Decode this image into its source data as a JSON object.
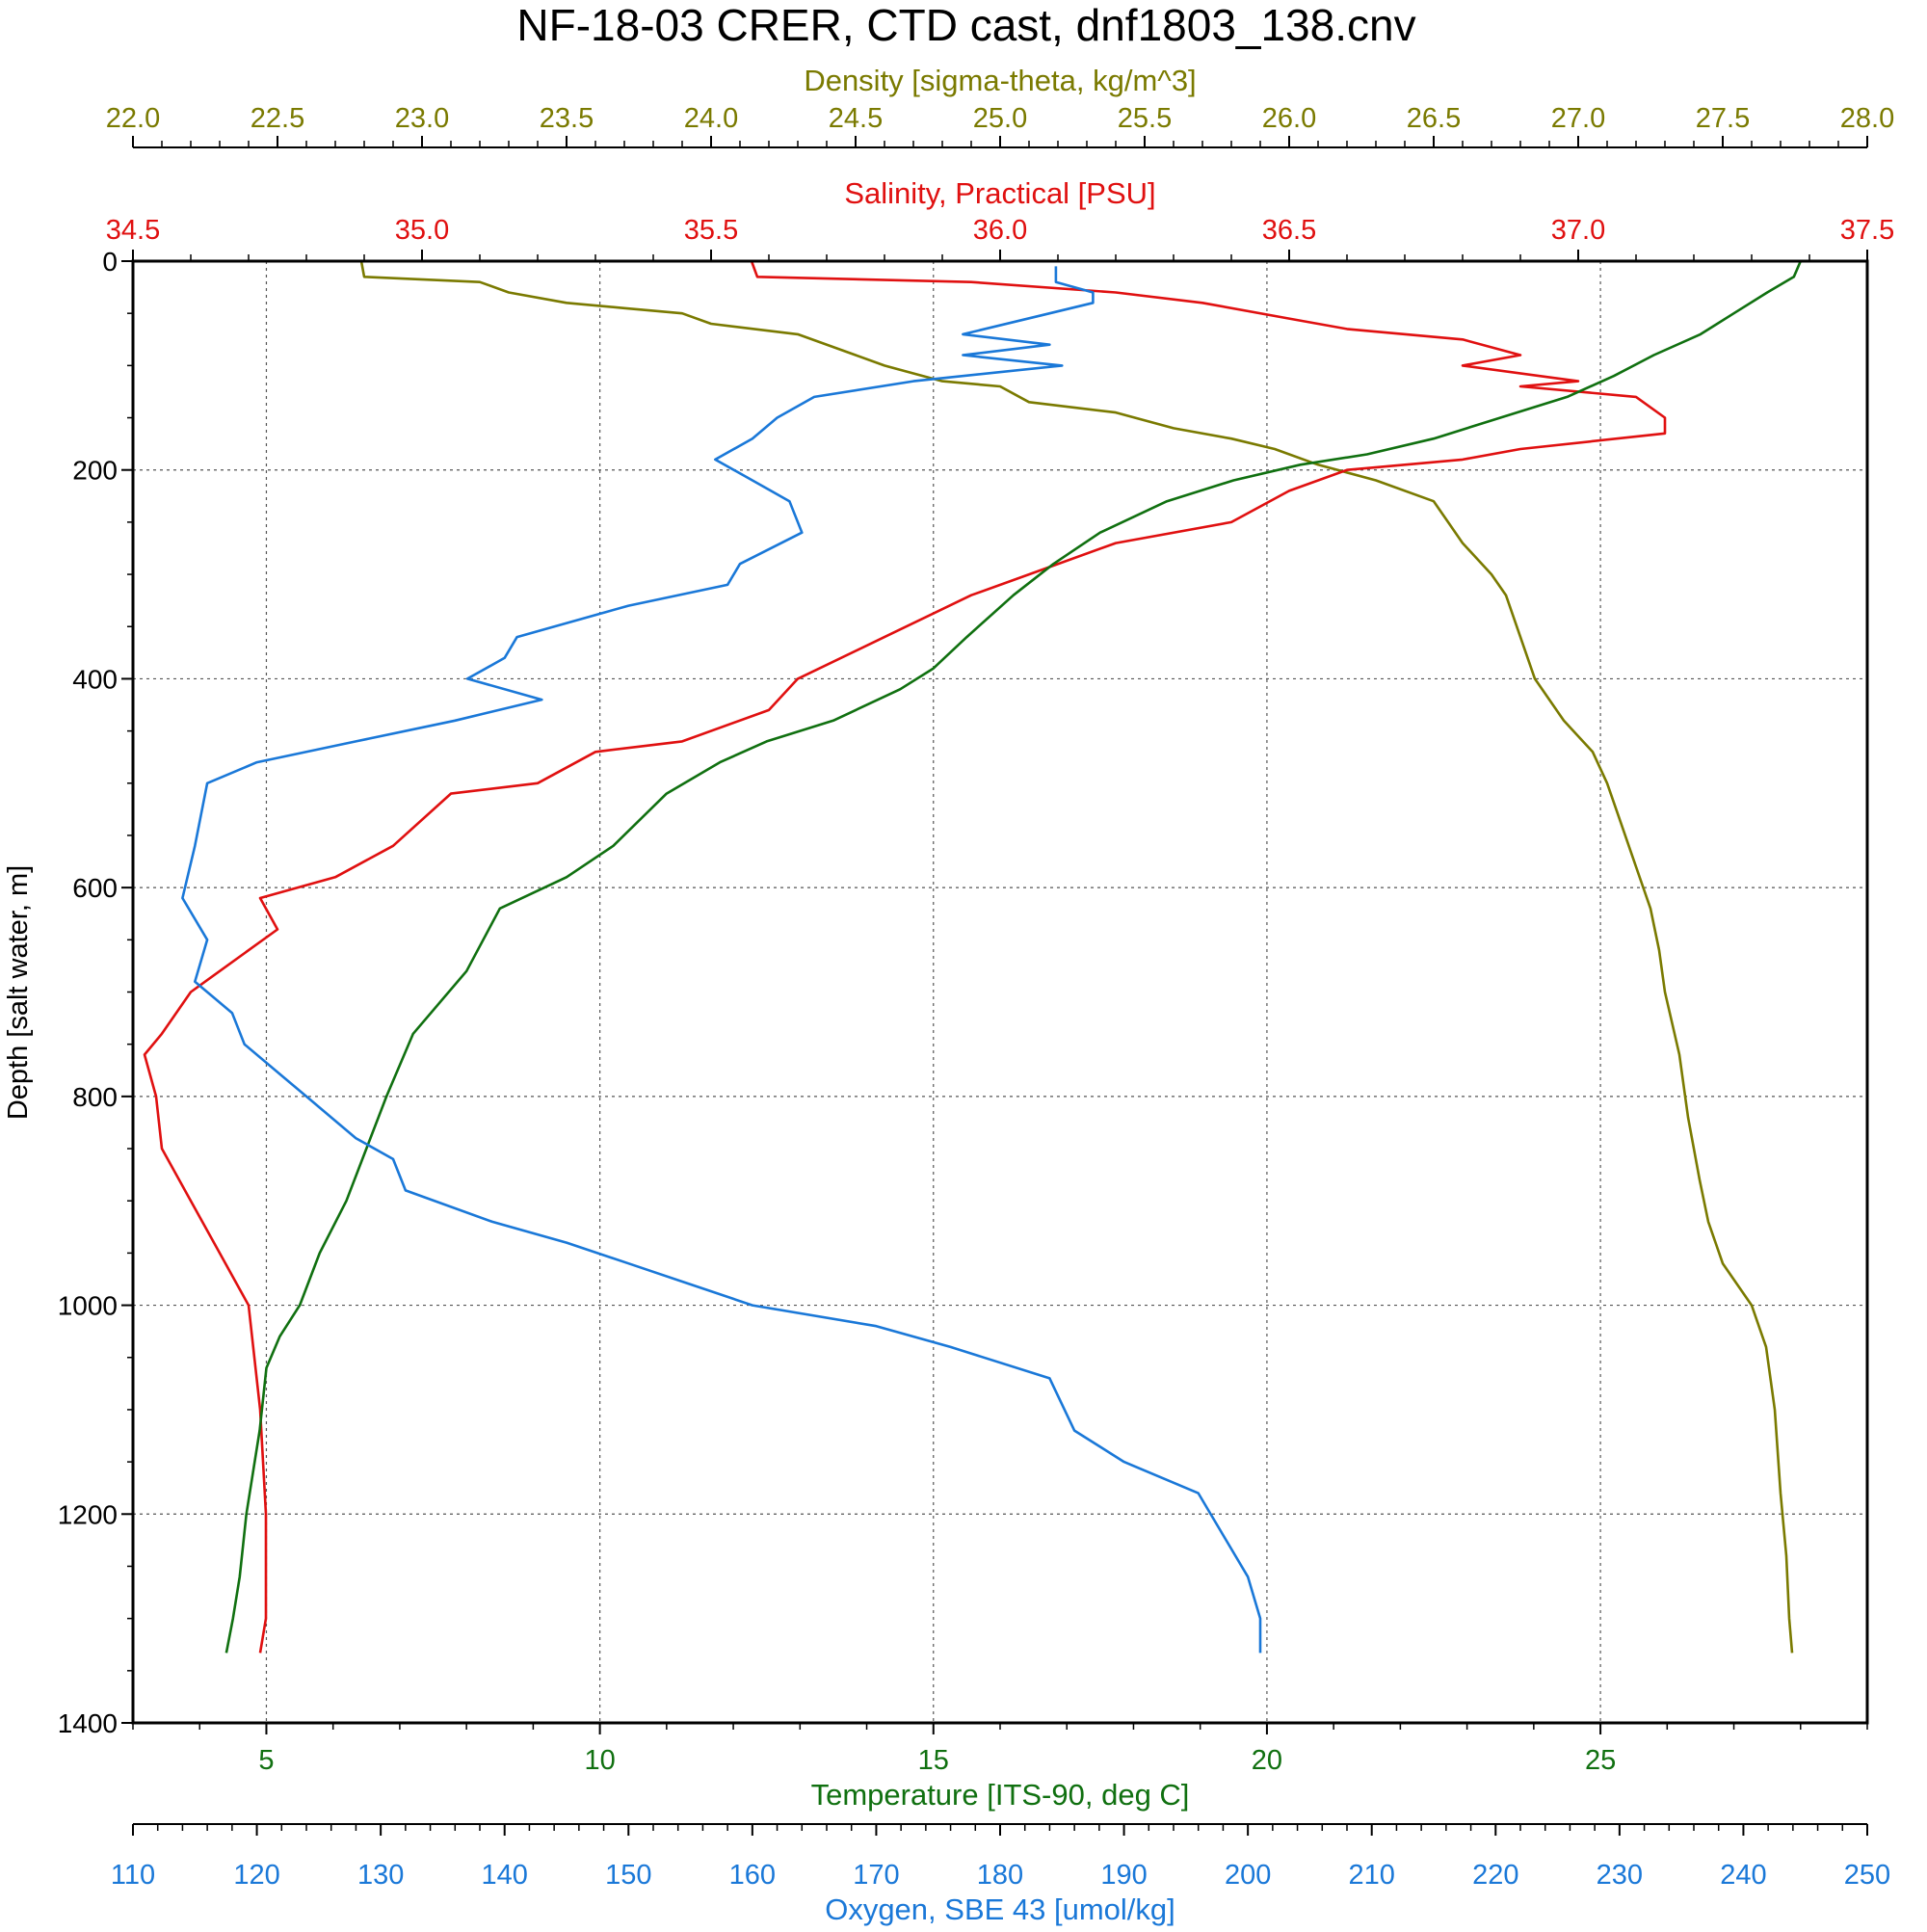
{
  "chart_data": {
    "type": "line",
    "title": "NF-18-03 CRER, CTD cast, dnf1803_138.cnv",
    "ylabel": "Depth [salt water, m]",
    "ylim": [
      1400,
      0
    ],
    "yticks": [
      "0",
      "200",
      "400",
      "600",
      "800",
      "1000",
      "1200",
      "1400"
    ],
    "grid": true,
    "axes": [
      {
        "key": "density",
        "label": "Density [sigma-theta, kg/m^3]",
        "position": "top-outer",
        "color": "#7a7a00",
        "range": [
          22.0,
          28.0
        ],
        "ticks": [
          "22.0",
          "22.5",
          "23.0",
          "23.5",
          "24.0",
          "24.5",
          "25.0",
          "25.5",
          "26.0",
          "26.5",
          "27.0",
          "27.5",
          "28.0"
        ]
      },
      {
        "key": "salinity",
        "label": "Salinity, Practical [PSU]",
        "position": "top-inner",
        "color": "#e01010",
        "range": [
          34.5,
          37.5
        ],
        "ticks": [
          "34.5",
          "35.0",
          "35.5",
          "36.0",
          "36.5",
          "37.0",
          "37.5"
        ]
      },
      {
        "key": "temperature",
        "label": "Temperature [ITS-90, deg C]",
        "position": "bottom-inner",
        "color": "#107010",
        "range": [
          3,
          29
        ],
        "ticks": [
          "5",
          "10",
          "15",
          "20",
          "25"
        ]
      },
      {
        "key": "oxygen",
        "label": "Oxygen, SBE 43 [umol/kg]",
        "position": "bottom-outer",
        "color": "#1a78d8",
        "range": [
          110,
          250
        ],
        "ticks": [
          "110",
          "120",
          "130",
          "140",
          "150",
          "160",
          "170",
          "180",
          "190",
          "200",
          "210",
          "220",
          "230",
          "240",
          "250"
        ]
      }
    ],
    "series": [
      {
        "axis": "density",
        "color": "#7a7a00",
        "points": [
          [
            22.79,
            0
          ],
          [
            22.8,
            15
          ],
          [
            23.2,
            20
          ],
          [
            23.3,
            30
          ],
          [
            23.5,
            40
          ],
          [
            23.7,
            45
          ],
          [
            23.9,
            50
          ],
          [
            24.0,
            60
          ],
          [
            24.3,
            70
          ],
          [
            24.5,
            90
          ],
          [
            24.6,
            100
          ],
          [
            24.8,
            115
          ],
          [
            25.0,
            120
          ],
          [
            25.1,
            135
          ],
          [
            25.4,
            145
          ],
          [
            25.6,
            160
          ],
          [
            25.8,
            170
          ],
          [
            25.95,
            180
          ],
          [
            26.1,
            195
          ],
          [
            26.3,
            210
          ],
          [
            26.5,
            230
          ],
          [
            26.55,
            250
          ],
          [
            26.6,
            270
          ],
          [
            26.7,
            300
          ],
          [
            26.75,
            320
          ],
          [
            26.8,
            360
          ],
          [
            26.85,
            400
          ],
          [
            26.95,
            440
          ],
          [
            27.05,
            470
          ],
          [
            27.1,
            500
          ],
          [
            27.15,
            540
          ],
          [
            27.2,
            580
          ],
          [
            27.25,
            620
          ],
          [
            27.28,
            660
          ],
          [
            27.3,
            700
          ],
          [
            27.35,
            760
          ],
          [
            27.38,
            820
          ],
          [
            27.42,
            880
          ],
          [
            27.45,
            920
          ],
          [
            27.5,
            960
          ],
          [
            27.6,
            1000
          ],
          [
            27.65,
            1040
          ],
          [
            27.68,
            1100
          ],
          [
            27.7,
            1180
          ],
          [
            27.72,
            1240
          ],
          [
            27.73,
            1300
          ],
          [
            27.74,
            1333
          ]
        ]
      },
      {
        "axis": "salinity",
        "color": "#e01010",
        "points": [
          [
            35.57,
            0
          ],
          [
            35.58,
            15
          ],
          [
            35.95,
            20
          ],
          [
            36.2,
            30
          ],
          [
            36.35,
            40
          ],
          [
            36.5,
            55
          ],
          [
            36.6,
            65
          ],
          [
            36.8,
            75
          ],
          [
            36.9,
            90
          ],
          [
            36.8,
            100
          ],
          [
            37.0,
            115
          ],
          [
            36.9,
            120
          ],
          [
            37.1,
            130
          ],
          [
            37.15,
            150
          ],
          [
            37.15,
            165
          ],
          [
            36.9,
            180
          ],
          [
            36.8,
            190
          ],
          [
            36.6,
            200
          ],
          [
            36.5,
            220
          ],
          [
            36.4,
            250
          ],
          [
            36.2,
            270
          ],
          [
            36.05,
            300
          ],
          [
            35.95,
            320
          ],
          [
            35.8,
            360
          ],
          [
            35.65,
            400
          ],
          [
            35.6,
            430
          ],
          [
            35.45,
            460
          ],
          [
            35.3,
            470
          ],
          [
            35.2,
            500
          ],
          [
            35.05,
            510
          ],
          [
            34.95,
            560
          ],
          [
            34.85,
            590
          ],
          [
            34.72,
            610
          ],
          [
            34.75,
            640
          ],
          [
            34.65,
            680
          ],
          [
            34.6,
            700
          ],
          [
            34.55,
            740
          ],
          [
            34.52,
            760
          ],
          [
            34.54,
            800
          ],
          [
            34.55,
            850
          ],
          [
            34.6,
            900
          ],
          [
            34.65,
            950
          ],
          [
            34.7,
            1000
          ],
          [
            34.72,
            1100
          ],
          [
            34.73,
            1200
          ],
          [
            34.73,
            1300
          ],
          [
            34.72,
            1333
          ]
        ]
      },
      {
        "axis": "temperature",
        "color": "#107010",
        "points": [
          [
            28.0,
            0
          ],
          [
            27.9,
            15
          ],
          [
            27.5,
            30
          ],
          [
            27.0,
            50
          ],
          [
            26.5,
            70
          ],
          [
            25.8,
            90
          ],
          [
            25.2,
            110
          ],
          [
            24.5,
            130
          ],
          [
            23.5,
            150
          ],
          [
            22.5,
            170
          ],
          [
            21.5,
            185
          ],
          [
            20.5,
            195
          ],
          [
            19.5,
            210
          ],
          [
            18.5,
            230
          ],
          [
            17.5,
            260
          ],
          [
            16.8,
            290
          ],
          [
            16.2,
            320
          ],
          [
            15.5,
            360
          ],
          [
            15.0,
            390
          ],
          [
            14.5,
            410
          ],
          [
            13.5,
            440
          ],
          [
            12.5,
            460
          ],
          [
            11.8,
            480
          ],
          [
            11.0,
            510
          ],
          [
            10.2,
            560
          ],
          [
            9.5,
            590
          ],
          [
            8.5,
            620
          ],
          [
            8.0,
            680
          ],
          [
            7.2,
            740
          ],
          [
            6.8,
            800
          ],
          [
            6.5,
            850
          ],
          [
            6.2,
            900
          ],
          [
            5.8,
            950
          ],
          [
            5.5,
            1000
          ],
          [
            5.2,
            1030
          ],
          [
            5.0,
            1060
          ],
          [
            4.9,
            1120
          ],
          [
            4.8,
            1160
          ],
          [
            4.7,
            1200
          ],
          [
            4.6,
            1260
          ],
          [
            4.5,
            1300
          ],
          [
            4.4,
            1333
          ]
        ]
      },
      {
        "axis": "oxygen",
        "color": "#1a78d8",
        "points": [
          [
            184.5,
            5
          ],
          [
            184.5,
            20
          ],
          [
            187.5,
            30
          ],
          [
            187.5,
            40
          ],
          [
            184,
            50
          ],
          [
            177,
            70
          ],
          [
            184,
            80
          ],
          [
            177,
            90
          ],
          [
            185,
            100
          ],
          [
            173,
            115
          ],
          [
            165,
            130
          ],
          [
            162,
            150
          ],
          [
            160,
            170
          ],
          [
            157,
            190
          ],
          [
            160,
            210
          ],
          [
            163,
            230
          ],
          [
            164,
            260
          ],
          [
            159,
            290
          ],
          [
            158,
            310
          ],
          [
            150,
            330
          ],
          [
            141,
            360
          ],
          [
            140,
            380
          ],
          [
            137,
            400
          ],
          [
            143,
            420
          ],
          [
            136,
            440
          ],
          [
            128,
            460
          ],
          [
            120,
            480
          ],
          [
            116,
            500
          ],
          [
            115,
            560
          ],
          [
            114,
            610
          ],
          [
            116,
            650
          ],
          [
            115,
            690
          ],
          [
            118,
            720
          ],
          [
            119,
            750
          ],
          [
            122,
            780
          ],
          [
            125,
            810
          ],
          [
            128,
            840
          ],
          [
            131,
            860
          ],
          [
            132,
            890
          ],
          [
            139,
            920
          ],
          [
            145,
            940
          ],
          [
            150,
            960
          ],
          [
            155,
            980
          ],
          [
            160,
            1000
          ],
          [
            170,
            1020
          ],
          [
            176,
            1040
          ],
          [
            184,
            1070
          ],
          [
            186,
            1120
          ],
          [
            190,
            1150
          ],
          [
            196,
            1180
          ],
          [
            198,
            1220
          ],
          [
            200,
            1260
          ],
          [
            201,
            1300
          ],
          [
            201,
            1333
          ]
        ]
      }
    ]
  }
}
